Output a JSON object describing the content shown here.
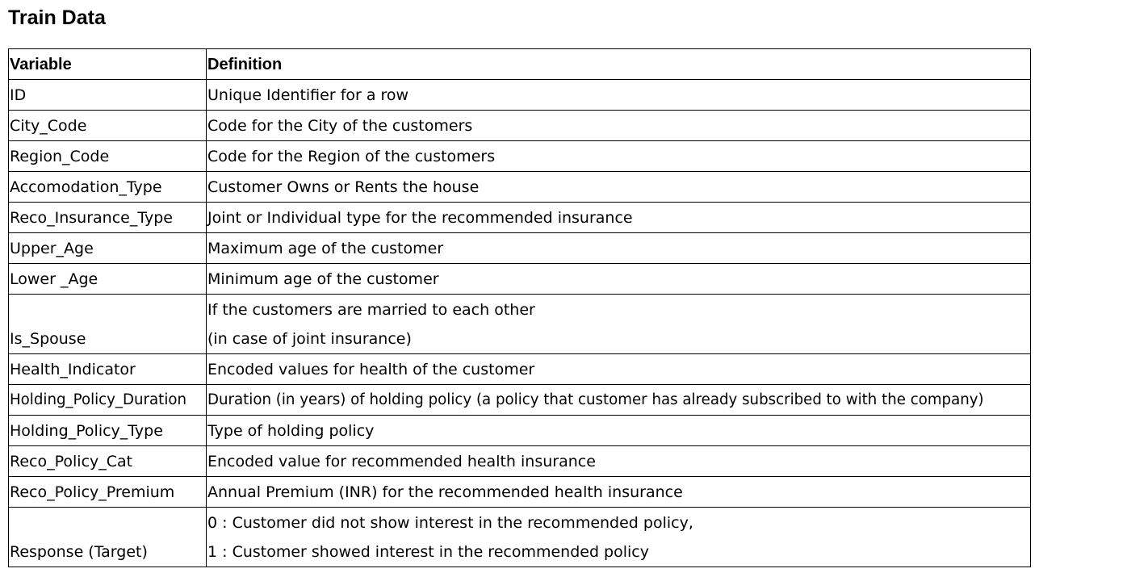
{
  "document": {
    "title": "Train Data"
  },
  "table": {
    "headers": [
      "Variable",
      "Definition"
    ],
    "rows": [
      {
        "variable": "ID",
        "definition": [
          "Unique Identifier for a row"
        ]
      },
      {
        "variable": "City_Code",
        "definition": [
          "Code for the City of the customers"
        ]
      },
      {
        "variable": "Region_Code",
        "definition": [
          "Code for the Region of the customers"
        ]
      },
      {
        "variable": "Accomodation_Type",
        "definition": [
          "Customer Owns or Rents the house"
        ]
      },
      {
        "variable": "Reco_Insurance_Type",
        "definition": [
          "Joint or Individual type for the recommended insurance"
        ]
      },
      {
        "variable": "Upper_Age",
        "definition": [
          "Maximum age of the customer"
        ]
      },
      {
        "variable": "Lower _Age",
        "definition": [
          "Minimum age of the customer"
        ]
      },
      {
        "variable": "Is_Spouse",
        "definition": [
          "If the customers are married to each other",
          "(in case of joint insurance)"
        ]
      },
      {
        "variable": "Health_Indicator",
        "definition": [
          "Encoded values for health of the customer"
        ]
      },
      {
        "variable": "Holding_Policy_Duration",
        "definition": [
          "Duration (in years) of holding policy (a policy that customer has already subscribed to with the company)"
        ]
      },
      {
        "variable": "Holding_Policy_Type",
        "definition": [
          "Type of holding policy"
        ]
      },
      {
        "variable": "Reco_Policy_Cat",
        "definition": [
          "Encoded value for recommended health insurance"
        ]
      },
      {
        "variable": "Reco_Policy_Premium",
        "definition": [
          "Annual Premium (INR) for the recommended health insurance"
        ]
      },
      {
        "variable": "Response (Target)",
        "definition": [
          "0 : Customer did not show interest in the recommended policy,",
          "1 : Customer showed interest in the recommended policy"
        ]
      }
    ]
  }
}
